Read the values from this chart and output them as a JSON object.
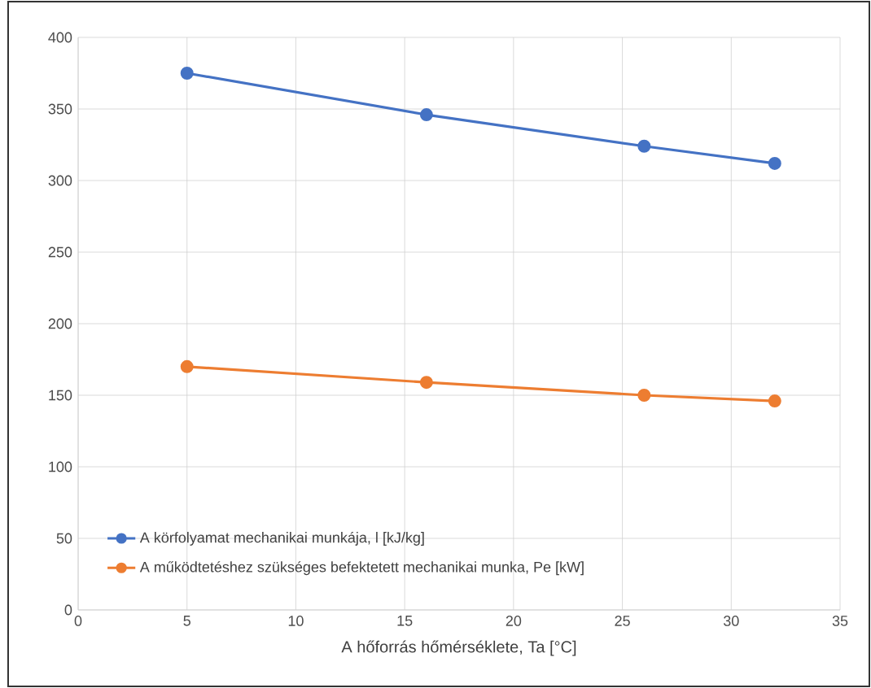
{
  "chart_data": {
    "type": "line",
    "xlabel": "A hőforrás hőmérséklete, Ta [°C]",
    "x": [
      5,
      16,
      26,
      32
    ],
    "series": [
      {
        "name": "A körfolyamat mechanikai munkája, l [kJ/kg]",
        "color": "#4472c4",
        "values": [
          375,
          346,
          324,
          312
        ]
      },
      {
        "name": "A működtetéshez szükséges befektetett mechanikai munka, Pe [kW]",
        "color": "#ed7d31",
        "values": [
          170,
          159,
          150,
          146
        ]
      }
    ],
    "xlim": [
      0,
      35
    ],
    "xticks": [
      0,
      5,
      10,
      15,
      20,
      25,
      30,
      35
    ],
    "ylim": [
      0,
      400
    ],
    "yticks": [
      0,
      50,
      100,
      150,
      200,
      250,
      300,
      350,
      400
    ],
    "grid": true,
    "legend": "bottom left",
    "marker": "circle",
    "line_style": "solid"
  }
}
